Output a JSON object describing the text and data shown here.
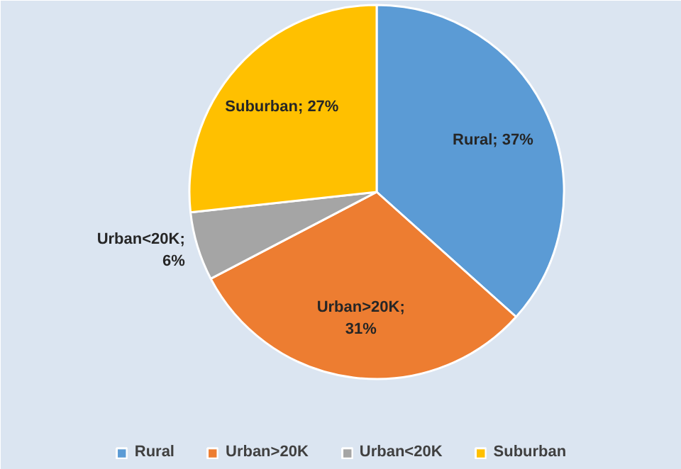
{
  "chart_data": {
    "type": "pie",
    "categories": [
      "Rural",
      "Urban>20K",
      "Urban<20K",
      "Suburban"
    ],
    "values": [
      37,
      31,
      6,
      27
    ],
    "colors": [
      "#5b9bd5",
      "#ed7d31",
      "#a5a5a5",
      "#ffc000"
    ],
    "value_labels": [
      "Rural; 37%",
      "Urban>20K;\n31%",
      "Urban<20K;\n6%",
      "Suburban; 27%"
    ],
    "legend": "bottom"
  }
}
